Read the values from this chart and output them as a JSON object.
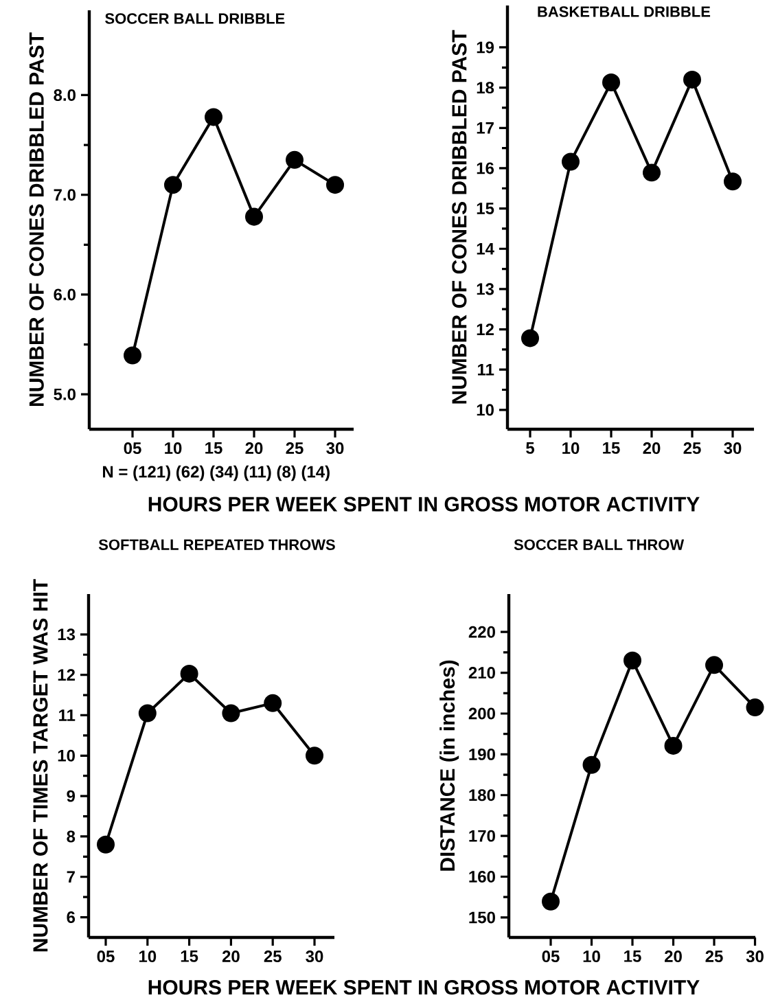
{
  "chart_data": [
    {
      "type": "line",
      "title": "SOCCER BALL DRIBBLE",
      "ylabel": "NUMBER OF CONES DRIBBLED PAST",
      "xlabel": "HOURS PER WEEK SPENT IN GROSS MOTOR ACTIVITY",
      "categories": [
        "05",
        "10",
        "15",
        "20",
        "25",
        "30"
      ],
      "series": [
        {
          "color": "#000000",
          "values": [
            5.39,
            7.1,
            7.78,
            6.78,
            7.35,
            7.1
          ]
        }
      ],
      "ylim": [
        4.65,
        8.85
      ],
      "yticks": [
        {
          "value": 5,
          "label": "5.0"
        },
        {
          "value": 6,
          "label": "6.0"
        },
        {
          "value": 7,
          "label": "7.0"
        },
        {
          "value": 8,
          "label": "8.0"
        }
      ],
      "marker": "circle",
      "line_style": "solid",
      "annotations": [
        "N = (121) (62) (34) (11) (8) (14)"
      ]
    },
    {
      "type": "line",
      "title": "BASKETBALL DRIBBLE",
      "ylabel": "NUMBER OF CONES DRIBBLED PAST",
      "categories": [
        "5",
        "10",
        "15",
        "20",
        "25",
        "30"
      ],
      "series": [
        {
          "color": "#000000",
          "values": [
            11.78,
            16.16,
            18.13,
            15.89,
            18.2,
            15.67
          ]
        }
      ],
      "ylim": [
        9.52,
        20.04
      ],
      "yticks": [
        10,
        11,
        12,
        13,
        14,
        15,
        16,
        17,
        18,
        19
      ],
      "marker": "circle",
      "line_style": "solid"
    },
    {
      "type": "line",
      "title": "SOFTBALL REPEATED THROWS",
      "ylabel": "NUMBER OF TIMES TARGET WAS HIT",
      "xlabel": "HOURS PER WEEK SPENT IN GROSS MOTOR ACTIVITY",
      "categories": [
        "05",
        "10",
        "15",
        "20",
        "25",
        "30"
      ],
      "series": [
        {
          "color": "#000000",
          "values": [
            7.8,
            11.05,
            12.03,
            11.05,
            11.3,
            10.0
          ]
        }
      ],
      "ylim": [
        5.5,
        14.0
      ],
      "yticks": [
        6,
        7,
        8,
        9,
        10,
        11,
        12,
        13
      ],
      "marker": "circle",
      "line_style": "solid"
    },
    {
      "type": "line",
      "title": "SOCCER BALL THROW",
      "ylabel": "DISTANCE (in inches)",
      "categories": [
        "05",
        "10",
        "15",
        "20",
        "25",
        "30"
      ],
      "series": [
        {
          "color": "#000000",
          "values": [
            153.9,
            187.4,
            213.0,
            192.1,
            211.9,
            201.5
          ]
        }
      ],
      "ylim": [
        145.1,
        229.3
      ],
      "yticks": [
        150,
        160,
        170,
        180,
        190,
        200,
        210,
        220
      ],
      "marker": "circle",
      "line_style": "solid"
    }
  ]
}
